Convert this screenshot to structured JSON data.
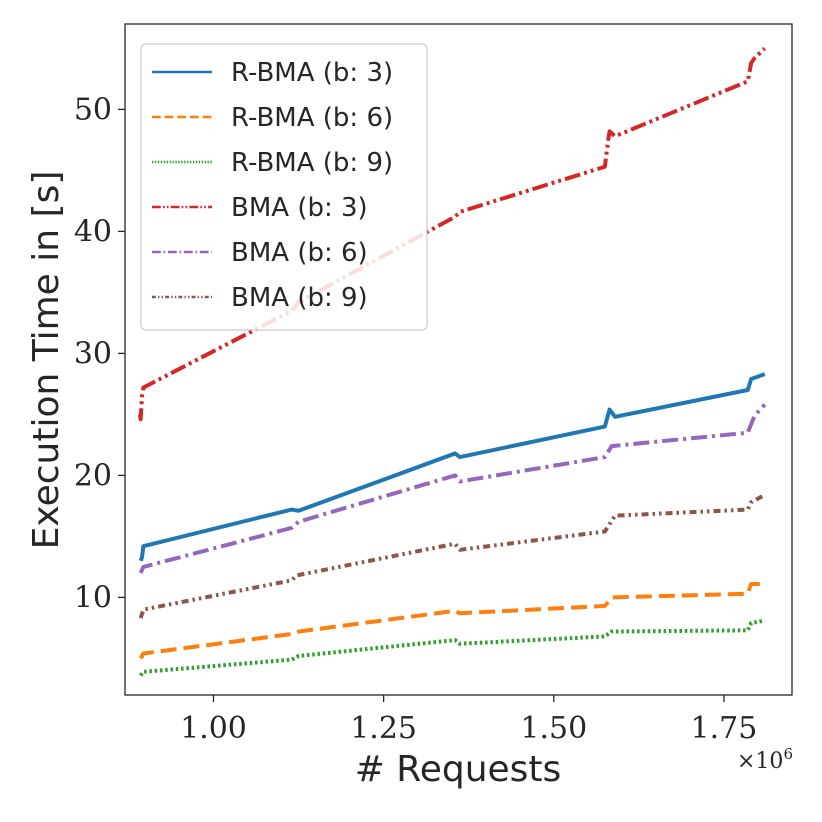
{
  "chart_data": {
    "type": "line",
    "title": "",
    "xlabel": "# Requests",
    "ylabel": "Execution Time in [s]",
    "x_offset_label": "×10^6",
    "x_offset_base": "×10",
    "x_offset_exp": "6",
    "xlim": [
      0.87,
      1.85
    ],
    "ylim": [
      2.0,
      57.0
    ],
    "xticks": [
      1.0,
      1.25,
      1.5,
      1.75
    ],
    "xtick_labels": [
      "1.00",
      "1.25",
      "1.50",
      "1.75"
    ],
    "yticks": [
      10,
      20,
      30,
      40,
      50
    ],
    "ytick_labels": [
      "10",
      "20",
      "30",
      "40",
      "50"
    ],
    "grid": false,
    "legend_position": "top-left",
    "series": [
      {
        "name": "R-BMA (b: 3)",
        "color": "#1f77b4",
        "dash": "solid",
        "x": [
          0.893,
          0.895,
          0.897,
          1.115,
          1.125,
          1.355,
          1.362,
          1.575,
          1.582,
          1.59,
          1.785,
          1.79,
          1.81
        ],
        "y": [
          13.0,
          13.3,
          14.2,
          17.2,
          17.1,
          21.8,
          21.5,
          24.0,
          25.4,
          24.8,
          27.0,
          27.9,
          28.3
        ]
      },
      {
        "name": "R-BMA (b: 6)",
        "color": "#ff7f0e",
        "dash": "dashed",
        "x": [
          0.893,
          0.897,
          1.115,
          1.125,
          1.355,
          1.362,
          1.575,
          1.585,
          1.785,
          1.79,
          1.81
        ],
        "y": [
          5.0,
          5.4,
          7.0,
          7.2,
          8.9,
          8.7,
          9.3,
          10.0,
          10.3,
          11.1,
          11.1
        ]
      },
      {
        "name": "R-BMA (b: 9)",
        "color": "#2ca02c",
        "dash": "dotted",
        "x": [
          0.893,
          0.897,
          1.115,
          1.125,
          1.355,
          1.362,
          1.575,
          1.585,
          1.785,
          1.79,
          1.81
        ],
        "y": [
          3.6,
          3.9,
          4.9,
          5.2,
          6.5,
          6.2,
          6.8,
          7.2,
          7.3,
          7.9,
          8.1
        ]
      },
      {
        "name": "BMA (b: 3)",
        "color": "#d62728",
        "dash": "dashdotdot",
        "x": [
          0.892,
          0.893,
          0.895,
          0.897,
          1.115,
          1.125,
          1.355,
          1.362,
          1.575,
          1.58,
          1.582,
          1.59,
          1.785,
          1.79,
          1.795,
          1.81
        ],
        "y": [
          25.0,
          24.6,
          26.5,
          27.2,
          33.5,
          34.2,
          41.2,
          41.6,
          45.3,
          47.5,
          48.2,
          47.8,
          52.3,
          53.8,
          54.2,
          55.0
        ]
      },
      {
        "name": "BMA (b: 6)",
        "color": "#9467bd",
        "dash": "dashdot",
        "x": [
          0.893,
          0.897,
          1.115,
          1.125,
          1.355,
          1.362,
          1.575,
          1.585,
          1.785,
          1.795,
          1.81
        ],
        "y": [
          12.0,
          12.5,
          15.7,
          16.2,
          20.0,
          19.5,
          21.5,
          22.4,
          23.5,
          24.9,
          25.8
        ]
      },
      {
        "name": "BMA (b: 9)",
        "color": "#8c564b",
        "dash": "densedashdotdot",
        "x": [
          0.893,
          0.897,
          1.115,
          1.122,
          1.355,
          1.362,
          1.575,
          1.59,
          1.785,
          1.79,
          1.81
        ],
        "y": [
          8.3,
          9.0,
          11.4,
          11.8,
          14.4,
          13.9,
          15.4,
          16.7,
          17.2,
          17.8,
          18.4
        ]
      }
    ]
  }
}
